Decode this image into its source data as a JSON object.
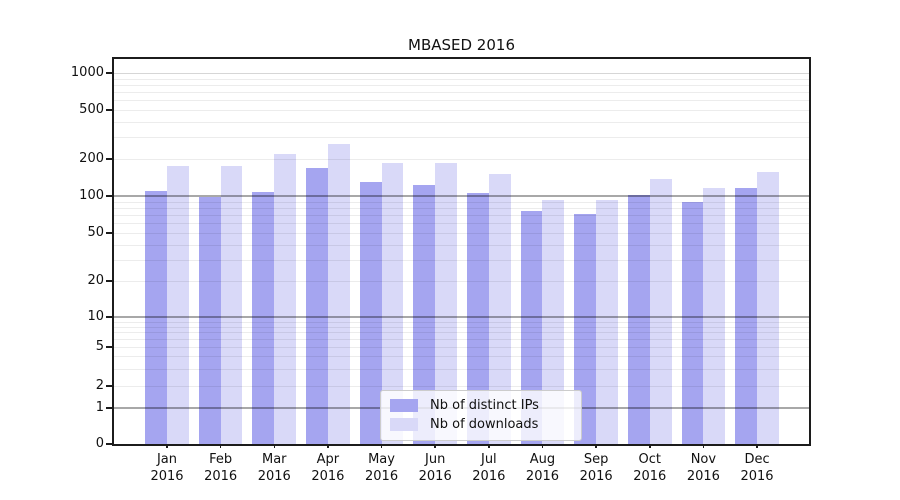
{
  "chart_data": {
    "type": "bar",
    "title": "MBASED 2016",
    "categories": [
      "Jan",
      "Feb",
      "Mar",
      "Apr",
      "May",
      "Jun",
      "Jul",
      "Aug",
      "Sep",
      "Oct",
      "Nov",
      "Dec"
    ],
    "year_label": "2016",
    "series": [
      {
        "name": "Nb of distinct IPs",
        "color": "#a5a5f0",
        "values": [
          110,
          99,
          107,
          170,
          131,
          123,
          106,
          75,
          72,
          101,
          90,
          117
        ]
      },
      {
        "name": "Nb of downloads",
        "color": "#d9d9f8",
        "values": [
          175,
          177,
          220,
          265,
          185,
          187,
          150,
          93,
          92,
          137,
          117,
          158
        ]
      }
    ],
    "yscale": "symlog",
    "yticks": [
      0,
      1,
      2,
      5,
      10,
      20,
      50,
      100,
      200,
      500,
      1000
    ],
    "ylim": [
      0,
      1300
    ],
    "xlabel": "",
    "ylabel": "",
    "grid": true,
    "legend_position": "lower center"
  }
}
